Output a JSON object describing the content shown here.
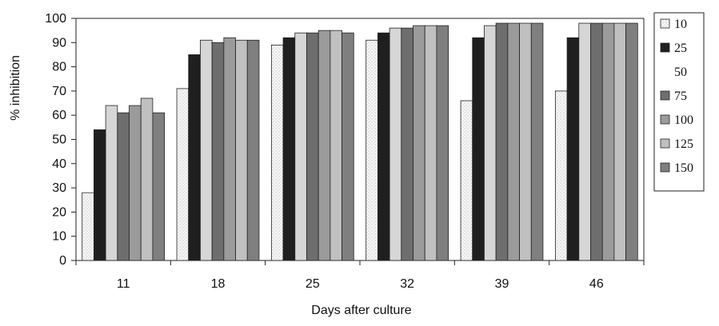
{
  "chart_data": {
    "type": "bar",
    "categories": [
      "11",
      "18",
      "25",
      "32",
      "39",
      "46"
    ],
    "series": [
      {
        "name": "10",
        "values": [
          28,
          71,
          89,
          91,
          66,
          70
        ],
        "color": "#f6f6f6",
        "pattern": "dots"
      },
      {
        "name": "25",
        "values": [
          54,
          85,
          92,
          94,
          92,
          92
        ],
        "color": "#1f1f1f"
      },
      {
        "name": "50",
        "values": [
          64,
          91,
          94,
          96,
          97,
          98
        ],
        "color": "#d6d6d6"
      },
      {
        "name": "75",
        "values": [
          61,
          90,
          94,
          96,
          98,
          98
        ],
        "color": "#6e6e6e"
      },
      {
        "name": "100",
        "values": [
          64,
          92,
          95,
          97,
          98,
          98
        ],
        "color": "#9b9b9b"
      },
      {
        "name": "125",
        "values": [
          67,
          91,
          95,
          97,
          98,
          98
        ],
        "color": "#c0c0c0"
      },
      {
        "name": "150",
        "values": [
          61,
          91,
          94,
          97,
          98,
          98
        ],
        "color": "#7f7f7f"
      }
    ],
    "yticks": [
      "0",
      "10",
      "20",
      "30",
      "40",
      "50",
      "60",
      "70",
      "80",
      "90",
      "100"
    ],
    "xlabel": "Days after culture",
    "ylabel": "% inhibition",
    "ylim": [
      0,
      100
    ],
    "grid": false,
    "legend_position": "right"
  }
}
